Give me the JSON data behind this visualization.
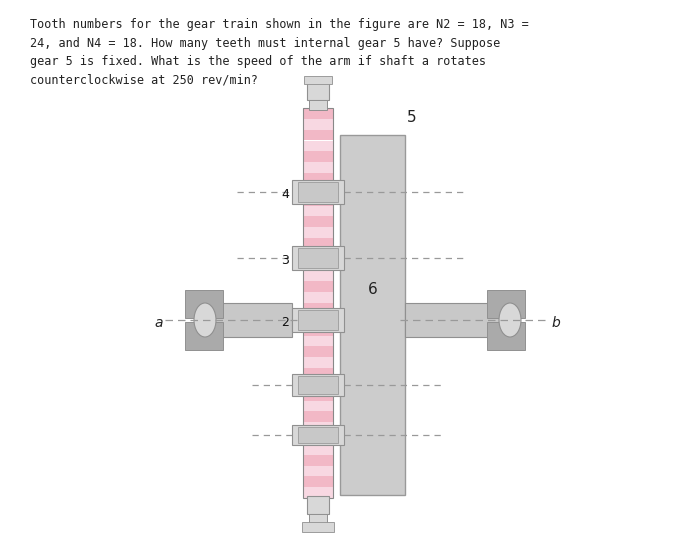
{
  "title_text": "Tooth numbers for the gear train shown in the figure are N2 = 18, N3 =\n24, and N4 = 18. How many teeth must internal gear 5 have? Suppose\ngear 5 is fixed. What is the speed of the arm if shaft a rotates\ncounterclockwise at 250 rev/min?",
  "bg_color": "#ffffff",
  "text_color": "#222222",
  "gear_pink": "#f2b8c6",
  "gear_pink_light": "#f8d8e2",
  "gear_stripe_dark": "#555555",
  "shaft_color": "#c8c8c8",
  "shaft_edge": "#909090",
  "gray_block": "#aaaaaa",
  "gray_light": "#d8d8d8",
  "gray_arm": "#cccccc",
  "gray_arm_edge": "#999999",
  "dashed_color": "#999999",
  "label_5": "5",
  "label_4": "4",
  "label_3": "3",
  "label_2": "2",
  "label_6": "6",
  "label_a": "a",
  "label_b": "b"
}
